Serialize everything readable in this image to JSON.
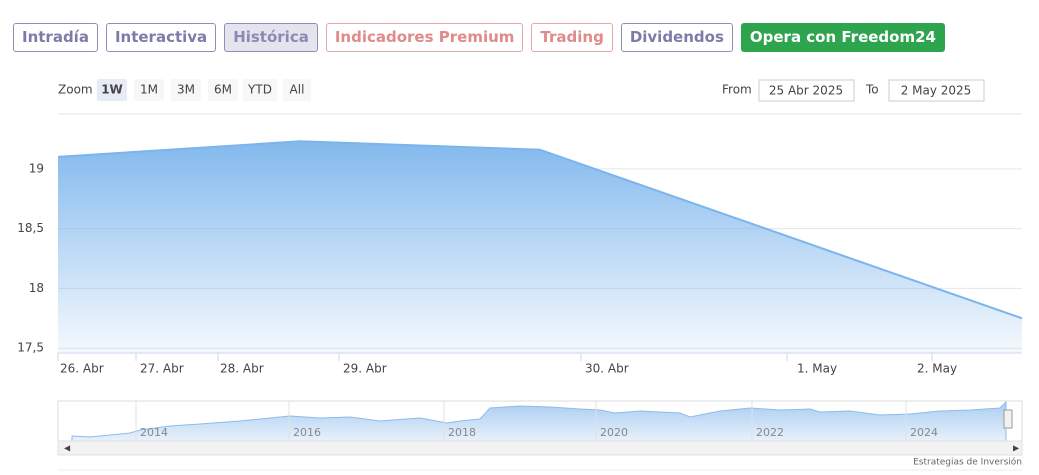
{
  "tabs": [
    "Intradía",
    "Interactiva",
    "Histórica",
    "Indicadores Premium",
    "Trading",
    "Dividendos",
    "Opera con Freedom24"
  ],
  "zoom_label": "Zoom",
  "zoom_buttons": [
    "1W",
    "1M",
    "3M",
    "6M",
    "YTD",
    "All"
  ],
  "from_label": "From",
  "from_value": "25 Abr 2025",
  "to_label": "To",
  "to_value": "2 May 2025",
  "navigator_years": [
    "2014",
    "2016",
    "2018",
    "2020",
    "2022",
    "2024"
  ],
  "credit": "Estrategias de Inversión",
  "chart_data": {
    "type": "area",
    "categories": [
      null,
      null,
      null,
      null
    ],
    "xtick_labels": [
      "26. Abr",
      "27. Abr",
      "28. Abr",
      "29. Abr",
      "30. Abr",
      "1. May",
      "2. May"
    ],
    "series": [
      {
        "color": "#7cb5ec",
        "values": [
          19.1,
          19.23,
          19.16,
          17.75
        ]
      }
    ],
    "ylim": [
      17.46,
      19.45
    ],
    "yticks": [
      {
        "value": 17.5,
        "label": "17,5"
      },
      18,
      {
        "value": 18.5,
        "label": "18,5"
      },
      19
    ],
    "grid": true
  }
}
